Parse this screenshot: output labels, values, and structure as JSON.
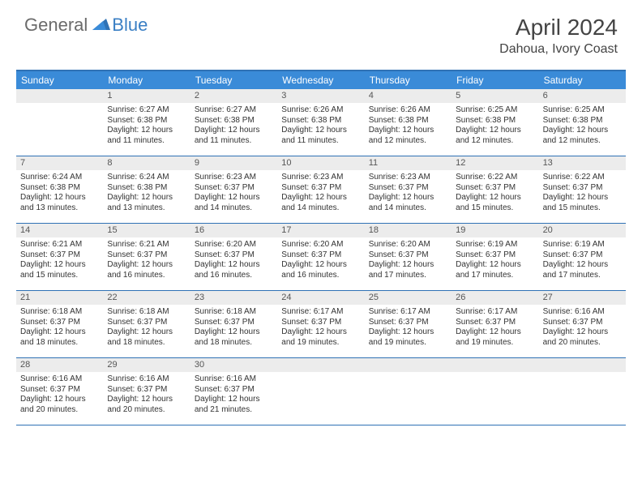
{
  "brand": {
    "word1": "General",
    "word2": "Blue"
  },
  "title": "April 2024",
  "location": "Dahoua, Ivory Coast",
  "colors": {
    "header_bg": "#3a8bd8",
    "border": "#2f72b5",
    "daynum_bg": "#ececec",
    "logo_gray": "#6b6b6b",
    "logo_blue": "#3a7fc4"
  },
  "dayNames": [
    "Sunday",
    "Monday",
    "Tuesday",
    "Wednesday",
    "Thursday",
    "Friday",
    "Saturday"
  ],
  "weeks": [
    [
      {
        "n": "",
        "sr": "",
        "ss": "",
        "dl": ""
      },
      {
        "n": "1",
        "sr": "6:27 AM",
        "ss": "6:38 PM",
        "dl": "12 hours and 11 minutes."
      },
      {
        "n": "2",
        "sr": "6:27 AM",
        "ss": "6:38 PM",
        "dl": "12 hours and 11 minutes."
      },
      {
        "n": "3",
        "sr": "6:26 AM",
        "ss": "6:38 PM",
        "dl": "12 hours and 11 minutes."
      },
      {
        "n": "4",
        "sr": "6:26 AM",
        "ss": "6:38 PM",
        "dl": "12 hours and 12 minutes."
      },
      {
        "n": "5",
        "sr": "6:25 AM",
        "ss": "6:38 PM",
        "dl": "12 hours and 12 minutes."
      },
      {
        "n": "6",
        "sr": "6:25 AM",
        "ss": "6:38 PM",
        "dl": "12 hours and 12 minutes."
      }
    ],
    [
      {
        "n": "7",
        "sr": "6:24 AM",
        "ss": "6:38 PM",
        "dl": "12 hours and 13 minutes."
      },
      {
        "n": "8",
        "sr": "6:24 AM",
        "ss": "6:38 PM",
        "dl": "12 hours and 13 minutes."
      },
      {
        "n": "9",
        "sr": "6:23 AM",
        "ss": "6:37 PM",
        "dl": "12 hours and 14 minutes."
      },
      {
        "n": "10",
        "sr": "6:23 AM",
        "ss": "6:37 PM",
        "dl": "12 hours and 14 minutes."
      },
      {
        "n": "11",
        "sr": "6:23 AM",
        "ss": "6:37 PM",
        "dl": "12 hours and 14 minutes."
      },
      {
        "n": "12",
        "sr": "6:22 AM",
        "ss": "6:37 PM",
        "dl": "12 hours and 15 minutes."
      },
      {
        "n": "13",
        "sr": "6:22 AM",
        "ss": "6:37 PM",
        "dl": "12 hours and 15 minutes."
      }
    ],
    [
      {
        "n": "14",
        "sr": "6:21 AM",
        "ss": "6:37 PM",
        "dl": "12 hours and 15 minutes."
      },
      {
        "n": "15",
        "sr": "6:21 AM",
        "ss": "6:37 PM",
        "dl": "12 hours and 16 minutes."
      },
      {
        "n": "16",
        "sr": "6:20 AM",
        "ss": "6:37 PM",
        "dl": "12 hours and 16 minutes."
      },
      {
        "n": "17",
        "sr": "6:20 AM",
        "ss": "6:37 PM",
        "dl": "12 hours and 16 minutes."
      },
      {
        "n": "18",
        "sr": "6:20 AM",
        "ss": "6:37 PM",
        "dl": "12 hours and 17 minutes."
      },
      {
        "n": "19",
        "sr": "6:19 AM",
        "ss": "6:37 PM",
        "dl": "12 hours and 17 minutes."
      },
      {
        "n": "20",
        "sr": "6:19 AM",
        "ss": "6:37 PM",
        "dl": "12 hours and 17 minutes."
      }
    ],
    [
      {
        "n": "21",
        "sr": "6:18 AM",
        "ss": "6:37 PM",
        "dl": "12 hours and 18 minutes."
      },
      {
        "n": "22",
        "sr": "6:18 AM",
        "ss": "6:37 PM",
        "dl": "12 hours and 18 minutes."
      },
      {
        "n": "23",
        "sr": "6:18 AM",
        "ss": "6:37 PM",
        "dl": "12 hours and 18 minutes."
      },
      {
        "n": "24",
        "sr": "6:17 AM",
        "ss": "6:37 PM",
        "dl": "12 hours and 19 minutes."
      },
      {
        "n": "25",
        "sr": "6:17 AM",
        "ss": "6:37 PM",
        "dl": "12 hours and 19 minutes."
      },
      {
        "n": "26",
        "sr": "6:17 AM",
        "ss": "6:37 PM",
        "dl": "12 hours and 19 minutes."
      },
      {
        "n": "27",
        "sr": "6:16 AM",
        "ss": "6:37 PM",
        "dl": "12 hours and 20 minutes."
      }
    ],
    [
      {
        "n": "28",
        "sr": "6:16 AM",
        "ss": "6:37 PM",
        "dl": "12 hours and 20 minutes."
      },
      {
        "n": "29",
        "sr": "6:16 AM",
        "ss": "6:37 PM",
        "dl": "12 hours and 20 minutes."
      },
      {
        "n": "30",
        "sr": "6:16 AM",
        "ss": "6:37 PM",
        "dl": "12 hours and 21 minutes."
      },
      {
        "n": "",
        "sr": "",
        "ss": "",
        "dl": ""
      },
      {
        "n": "",
        "sr": "",
        "ss": "",
        "dl": ""
      },
      {
        "n": "",
        "sr": "",
        "ss": "",
        "dl": ""
      },
      {
        "n": "",
        "sr": "",
        "ss": "",
        "dl": ""
      }
    ]
  ],
  "labels": {
    "sunrise": "Sunrise:",
    "sunset": "Sunset:",
    "daylight": "Daylight:"
  }
}
